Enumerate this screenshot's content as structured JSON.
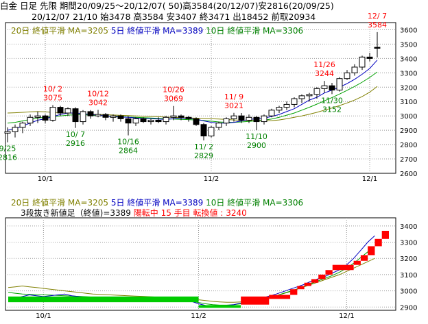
{
  "header": {
    "line1": "白金 日足 先限 期間20/09/25～20/12/07( 50)高3584(20/12/07)安2816(20/09/25)",
    "line2": "20/12/07 21/10 始3478 高3584 安3407 終3471 出18452 前取20934"
  },
  "ma_legend": {
    "ma20": "20日 終値平滑 MA=3205",
    "ma5": "5日 終値平滑 MA=3389",
    "ma10": "10日 終値平滑 MA=3306"
  },
  "breakout": {
    "prefix": "3段抜き新値足（終値)=3389",
    "status": "陽転中",
    "count": "15 手目",
    "turn": "転換値 : 3240"
  },
  "colors": {
    "up": "#ffffff",
    "down": "#000000",
    "wick": "#000000",
    "ma5": "#0000c0",
    "ma10": "#00a000",
    "ma20": "#808000",
    "label_high": "#ff0000",
    "label_low": "#008000",
    "brick_up": "#ff0000",
    "brick_down": "#00cc00"
  },
  "chart_data": [
    {
      "type": "candlestick",
      "name": "price",
      "ylim": [
        2600,
        3650
      ],
      "yticks": [
        2600,
        2700,
        2800,
        2900,
        3000,
        3100,
        3200,
        3300,
        3400,
        3500,
        3600
      ],
      "xticks": [
        {
          "index": 5,
          "label": "10/1"
        },
        {
          "index": 27,
          "label": "11/2"
        },
        {
          "index": 48,
          "label": "12/1"
        }
      ],
      "ohlc": [
        [
          2880,
          2920,
          2816,
          2890
        ],
        [
          2890,
          2940,
          2850,
          2920
        ],
        [
          2920,
          2960,
          2880,
          2950
        ],
        [
          2950,
          3010,
          2930,
          2990
        ],
        [
          2990,
          3030,
          2950,
          3000
        ],
        [
          3000,
          3010,
          2950,
          2970
        ],
        [
          2970,
          3075,
          2960,
          3060
        ],
        [
          3060,
          3070,
          3000,
          3020
        ],
        [
          3020,
          3060,
          3000,
          3050
        ],
        [
          3050,
          3060,
          2916,
          2960
        ],
        [
          2960,
          3040,
          2940,
          3030
        ],
        [
          3030,
          3040,
          2980,
          3000
        ],
        [
          3000,
          3042,
          2990,
          3010
        ],
        [
          3010,
          3020,
          2970,
          2990
        ],
        [
          2990,
          3010,
          2960,
          3000
        ],
        [
          3000,
          3010,
          2960,
          2980
        ],
        [
          2980,
          3000,
          2864,
          2950
        ],
        [
          2950,
          2990,
          2930,
          2980
        ],
        [
          2980,
          2990,
          2950,
          2960
        ],
        [
          2960,
          2980,
          2940,
          2970
        ],
        [
          2970,
          2990,
          2950,
          2960
        ],
        [
          2960,
          3000,
          2940,
          2990
        ],
        [
          2990,
          3069,
          2970,
          3000
        ],
        [
          3000,
          3010,
          2970,
          2990
        ],
        [
          2990,
          3000,
          2960,
          2980
        ],
        [
          2980,
          2990,
          2930,
          2940
        ],
        [
          2940,
          2950,
          2829,
          2860
        ],
        [
          2860,
          2930,
          2850,
          2920
        ],
        [
          2920,
          2960,
          2900,
          2950
        ],
        [
          2950,
          2990,
          2930,
          2980
        ],
        [
          2980,
          3021,
          2960,
          3000
        ],
        [
          3000,
          3020,
          2950,
          2970
        ],
        [
          2970,
          3010,
          2950,
          2990
        ],
        [
          2990,
          3000,
          2900,
          2960
        ],
        [
          2960,
          3010,
          2940,
          3000
        ],
        [
          3000,
          3050,
          2990,
          3040
        ],
        [
          3040,
          3070,
          3020,
          3060
        ],
        [
          3060,
          3100,
          3040,
          3080
        ],
        [
          3080,
          3130,
          3060,
          3120
        ],
        [
          3120,
          3150,
          3090,
          3140
        ],
        [
          3140,
          3160,
          3100,
          3150
        ],
        [
          3150,
          3200,
          3120,
          3190
        ],
        [
          3190,
          3244,
          3160,
          3210
        ],
        [
          3210,
          3230,
          3152,
          3180
        ],
        [
          3180,
          3270,
          3170,
          3260
        ],
        [
          3260,
          3320,
          3250,
          3300
        ],
        [
          3300,
          3360,
          3280,
          3340
        ],
        [
          3340,
          3420,
          3320,
          3410
        ],
        [
          3410,
          3440,
          3380,
          3400
        ],
        [
          3478,
          3584,
          3407,
          3471
        ]
      ],
      "annotations": [
        {
          "index": 0,
          "text": "9/25",
          "value": "2816",
          "kind": "low"
        },
        {
          "index": 6,
          "text": "10/ 2",
          "value": "3075",
          "kind": "high"
        },
        {
          "index": 9,
          "text": "10/ 7",
          "value": "2916",
          "kind": "low"
        },
        {
          "index": 12,
          "text": "10/12",
          "value": "3042",
          "kind": "high"
        },
        {
          "index": 16,
          "text": "10/16",
          "value": "2864",
          "kind": "low"
        },
        {
          "index": 22,
          "text": "10/26",
          "value": "3069",
          "kind": "high"
        },
        {
          "index": 26,
          "text": "11/ 2",
          "value": "2829",
          "kind": "low"
        },
        {
          "index": 30,
          "text": "11/ 9",
          "value": "3021",
          "kind": "high"
        },
        {
          "index": 33,
          "text": "11/10",
          "value": "2900",
          "kind": "low"
        },
        {
          "index": 42,
          "text": "11/26",
          "value": "3244",
          "kind": "high"
        },
        {
          "index": 43,
          "text": "11/30",
          "value": "3152",
          "kind": "low"
        },
        {
          "index": 49,
          "text": "12/ 7",
          "value": "3584",
          "kind": "high"
        }
      ],
      "ma": {
        "ma20": [
          3020,
          3022,
          3025,
          3028,
          3030,
          3028,
          3025,
          3022,
          3020,
          3018,
          3015,
          3012,
          3010,
          3008,
          3006,
          3004,
          3002,
          3000,
          2998,
          2996,
          2994,
          2992,
          2990,
          2988,
          2986,
          2984,
          2982,
          2980,
          2978,
          2975,
          2972,
          2970,
          2968,
          2966,
          2965,
          2967,
          2972,
          2980,
          2990,
          3000,
          3012,
          3025,
          3040,
          3055,
          3072,
          3090,
          3110,
          3135,
          3165,
          3205
        ],
        "ma5": [
          2900,
          2910,
          2930,
          2950,
          2970,
          2980,
          2995,
          3010,
          3020,
          3020,
          3015,
          3010,
          3005,
          3000,
          2995,
          2992,
          2990,
          2985,
          2982,
          2980,
          2978,
          2975,
          2980,
          2985,
          2982,
          2978,
          2965,
          2955,
          2950,
          2950,
          2955,
          2965,
          2975,
          2980,
          2985,
          2995,
          3010,
          3030,
          3050,
          3080,
          3110,
          3130,
          3160,
          3180,
          3200,
          3225,
          3255,
          3290,
          3330,
          3389
        ],
        "ma10": [
          2950,
          2955,
          2965,
          2975,
          2985,
          2990,
          2995,
          3000,
          3005,
          3008,
          3008,
          3005,
          3002,
          3000,
          2998,
          2995,
          2992,
          2990,
          2988,
          2985,
          2983,
          2980,
          2978,
          2976,
          2974,
          2972,
          2968,
          2963,
          2958,
          2955,
          2955,
          2958,
          2962,
          2966,
          2970,
          2978,
          2990,
          3005,
          3020,
          3040,
          3060,
          3082,
          3105,
          3128,
          3152,
          3178,
          3205,
          3235,
          3268,
          3306
        ]
      }
    },
    {
      "type": "new-price-bricks",
      "name": "3-line break",
      "ylim": [
        2880,
        3450
      ],
      "yticks": [
        2900,
        3000,
        3100,
        3200,
        3300,
        3400
      ],
      "xticks": [
        {
          "index": 5,
          "label": "10/1"
        },
        {
          "index": 27,
          "label": "11/2"
        },
        {
          "index": 48,
          "label": "12/1"
        }
      ],
      "bricks": [
        {
          "start": 0,
          "end": 27,
          "low": 2930,
          "high": 2965,
          "dir": "down"
        },
        {
          "start": 27,
          "end": 33,
          "low": 2895,
          "high": 2912,
          "dir": "down"
        },
        {
          "start": 33,
          "end": 37,
          "low": 2915,
          "high": 2965,
          "dir": "up"
        },
        {
          "start": 37,
          "end": 40,
          "low": 2950,
          "high": 2975,
          "dir": "up"
        },
        {
          "start": 40,
          "end": 41,
          "low": 2975,
          "high": 3010,
          "dir": "up"
        },
        {
          "start": 41,
          "end": 42,
          "low": 3010,
          "high": 3030,
          "dir": "up"
        },
        {
          "start": 42,
          "end": 43,
          "low": 3030,
          "high": 3050,
          "dir": "up"
        },
        {
          "start": 43,
          "end": 44,
          "low": 3050,
          "high": 3072,
          "dir": "up"
        },
        {
          "start": 44,
          "end": 45,
          "low": 3072,
          "high": 3100,
          "dir": "up"
        },
        {
          "start": 45,
          "end": 46,
          "low": 3100,
          "high": 3128,
          "dir": "up"
        },
        {
          "start": 46,
          "end": 49,
          "low": 3128,
          "high": 3160,
          "dir": "up"
        },
        {
          "start": 49,
          "end": 50,
          "low": 3160,
          "high": 3185,
          "dir": "up"
        },
        {
          "start": 50,
          "end": 51,
          "low": 3185,
          "high": 3220,
          "dir": "up"
        },
        {
          "start": 51,
          "end": 52,
          "low": 3220,
          "high": 3275,
          "dir": "up"
        },
        {
          "start": 52,
          "end": 53,
          "low": 3275,
          "high": 3320,
          "dir": "up"
        },
        {
          "start": 53,
          "end": 54,
          "low": 3320,
          "high": 3370,
          "dir": "up"
        }
      ],
      "ma": {
        "ma20": [
          3020,
          3025,
          3030,
          3025,
          3020,
          3015,
          3010,
          3005,
          3000,
          2995,
          2990,
          2985,
          2980,
          2978,
          2976,
          2974,
          2972,
          2970,
          2968,
          2966,
          2964,
          2962,
          2960,
          2958,
          2955,
          2952,
          2950,
          2945,
          2940,
          2935,
          2932,
          2930,
          2930,
          2932,
          2935,
          2940,
          2948,
          2958,
          2970,
          2982,
          2995,
          3010,
          3025,
          3040,
          3055,
          3070,
          3085,
          3100,
          3120,
          3140,
          3160,
          3180,
          3200
        ],
        "ma5": [
          2960,
          2955,
          2965,
          2975,
          2970,
          2965,
          2970,
          2975,
          2980,
          2970,
          2965,
          2960,
          2955,
          2960,
          2962,
          2958,
          2955,
          2958,
          2960,
          2958,
          2955,
          2950,
          2948,
          2946,
          2944,
          2942,
          2935,
          2920,
          2910,
          2905,
          2905,
          2910,
          2915,
          2925,
          2935,
          2945,
          2955,
          2968,
          2980,
          2995,
          3010,
          3025,
          3040,
          3060,
          3075,
          3090,
          3110,
          3130,
          3160,
          3200,
          3250,
          3300,
          3340
        ],
        "ma10": [
          2990,
          2985,
          2980,
          2978,
          2976,
          2975,
          2974,
          2972,
          2970,
          2968,
          2966,
          2964,
          2962,
          2960,
          2958,
          2956,
          2955,
          2953,
          2952,
          2950,
          2948,
          2946,
          2944,
          2942,
          2940,
          2938,
          2935,
          2928,
          2920,
          2915,
          2912,
          2912,
          2915,
          2920,
          2928,
          2936,
          2946,
          2958,
          2970,
          2984,
          2998,
          3012,
          3028,
          3045,
          3062,
          3078,
          3095,
          3115,
          3140,
          3170,
          3205,
          3240,
          3270
        ]
      }
    }
  ]
}
